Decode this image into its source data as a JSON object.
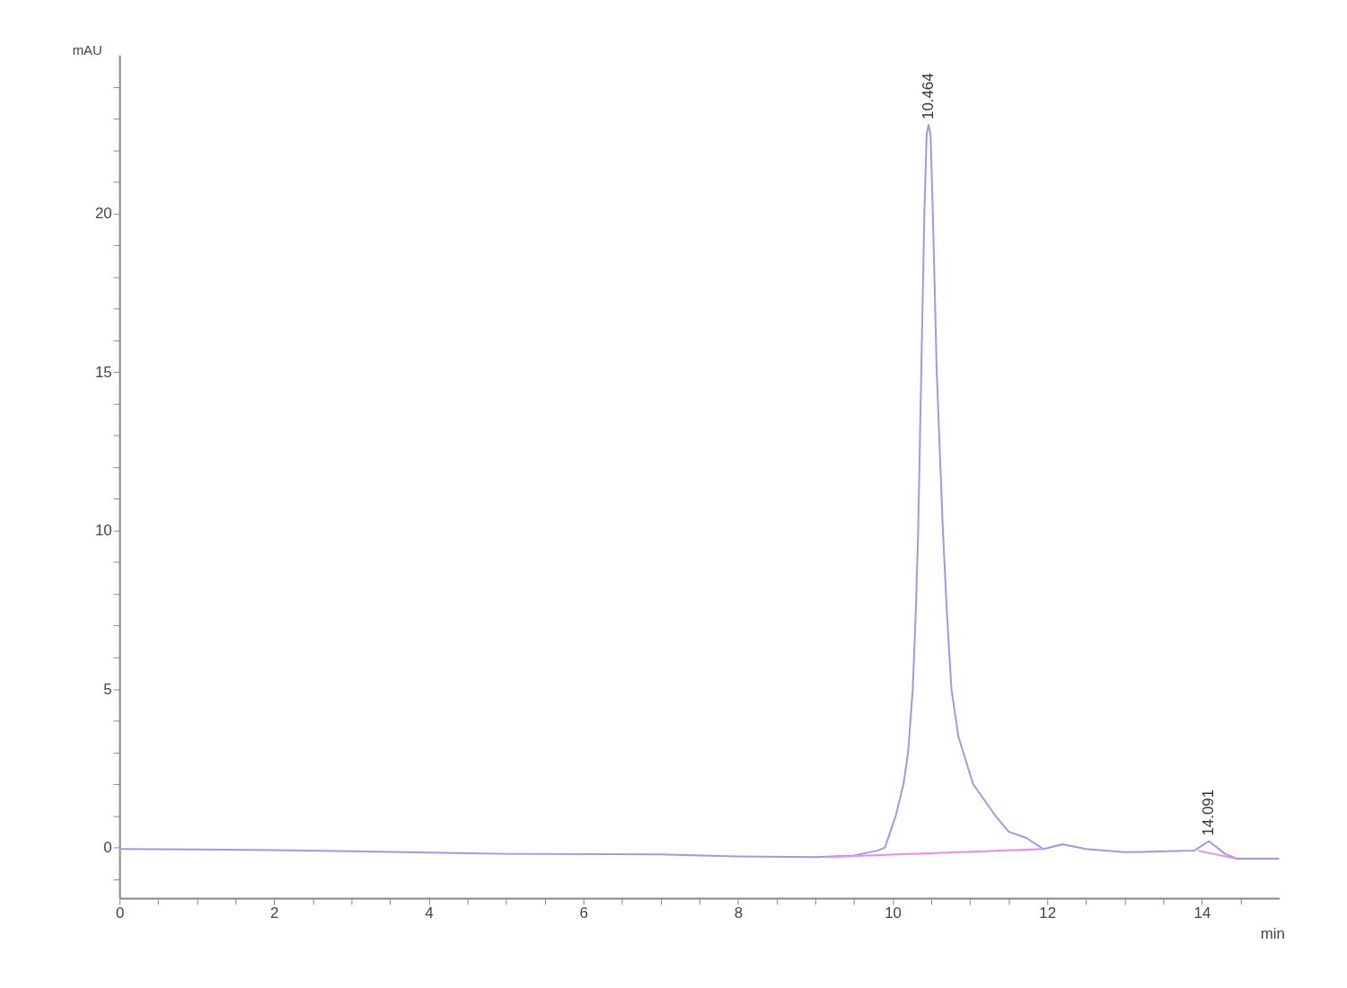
{
  "chart_data": {
    "type": "line",
    "xlabel": "min",
    "ylabel": "mAU",
    "series": [
      {
        "color": "#9a9af0",
        "x": [
          0,
          2,
          3,
          5,
          7,
          8,
          9,
          9.5,
          9.8,
          9.9,
          10.04,
          10.14,
          10.2,
          10.26,
          10.3,
          10.33,
          10.37,
          10.41,
          10.44,
          10.464,
          10.49,
          10.52,
          10.57,
          10.65,
          10.7,
          10.76,
          10.85,
          11.04,
          11.33,
          11.5,
          11.73,
          11.95,
          12.2,
          12.5,
          13,
          13.9,
          14.09,
          14.3,
          14.45,
          15
        ],
        "values": [
          -0.05,
          -0.08,
          -0.12,
          -0.2,
          -0.22,
          -0.28,
          -0.3,
          -0.25,
          -0.1,
          0,
          1,
          2,
          3,
          5,
          7.5,
          10,
          15,
          20,
          22.5,
          22.8,
          22.5,
          20,
          15,
          10,
          7.5,
          5,
          3.5,
          2,
          1,
          0.5,
          0.3,
          -0.05,
          0.1,
          -0.05,
          -0.15,
          -0.1,
          0.2,
          -0.2,
          -0.35,
          -0.35
        ]
      },
      {
        "color": "#ee88ee",
        "x": [
          9.15,
          11.95
        ],
        "values": [
          -0.3,
          -0.05
        ]
      },
      {
        "color": "#ee88ee",
        "x": [
          13.95,
          14.45
        ],
        "values": [
          -0.1,
          -0.35
        ]
      }
    ],
    "annotations": [
      {
        "text": "10.464",
        "x": 10.464,
        "y": 22.8
      },
      {
        "text": "14.091",
        "x": 14.091,
        "y": 0.2
      }
    ],
    "xlim": [
      0,
      15
    ],
    "xticks": [
      0,
      {
        "value": 0.5,
        "label": null
      },
      {
        "value": 1,
        "label": null
      },
      {
        "value": 1.5,
        "label": null
      },
      2,
      {
        "value": 2.5,
        "label": null
      },
      {
        "value": 3,
        "label": null
      },
      {
        "value": 3.5,
        "label": null
      },
      4,
      {
        "value": 4.5,
        "label": null
      },
      {
        "value": 5,
        "label": null
      },
      {
        "value": 5.5,
        "label": null
      },
      6,
      {
        "value": 6.5,
        "label": null
      },
      {
        "value": 7,
        "label": null
      },
      {
        "value": 7.5,
        "label": null
      },
      8,
      {
        "value": 8.5,
        "label": null
      },
      {
        "value": 9,
        "label": null
      },
      {
        "value": 9.5,
        "label": null
      },
      10,
      {
        "value": 10.5,
        "label": null
      },
      {
        "value": 11,
        "label": null
      },
      {
        "value": 11.5,
        "label": null
      },
      12,
      {
        "value": 12.5,
        "label": null
      },
      {
        "value": 13,
        "label": null
      },
      {
        "value": 13.5,
        "label": null
      },
      14,
      {
        "value": 14.5,
        "label": null
      }
    ],
    "ylim": [
      -1.6,
      25
    ],
    "yticks": [
      {
        "value": -1,
        "label": null
      },
      0,
      {
        "value": 1,
        "label": null
      },
      {
        "value": 2,
        "label": null
      },
      {
        "value": 3,
        "label": null
      },
      {
        "value": 4,
        "label": null
      },
      5,
      {
        "value": 6,
        "label": null
      },
      {
        "value": 7,
        "label": null
      },
      {
        "value": 8,
        "label": null
      },
      {
        "value": 9,
        "label": null
      },
      10,
      {
        "value": 11,
        "label": null
      },
      {
        "value": 12,
        "label": null
      },
      {
        "value": 13,
        "label": null
      },
      {
        "value": 14,
        "label": null
      },
      15,
      {
        "value": 16,
        "label": null
      },
      {
        "value": 17,
        "label": null
      },
      {
        "value": 18,
        "label": null
      },
      {
        "value": 19,
        "label": null
      },
      20,
      {
        "value": 21,
        "label": null
      },
      {
        "value": 22,
        "label": null
      },
      {
        "value": 23,
        "label": null
      },
      {
        "value": 24,
        "label": null
      }
    ],
    "grid": false,
    "marker": "none",
    "line_style": "solid"
  }
}
